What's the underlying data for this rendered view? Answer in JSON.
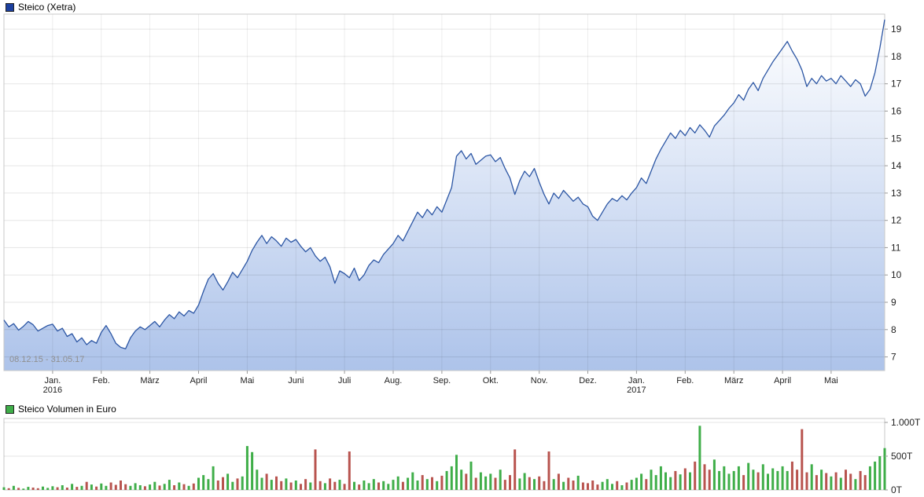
{
  "chart_data": [
    {
      "type": "area",
      "title": "Steico (Xetra)",
      "range_label": "08.12.15 - 31.05.17",
      "ylim": [
        6.5,
        19.55
      ],
      "yticks": [
        7,
        8,
        9,
        10,
        11,
        12,
        13,
        14,
        15,
        16,
        17,
        18,
        19
      ],
      "x_ticks": [
        {
          "label": "Jan.",
          "sub": "2016",
          "i": 10
        },
        {
          "label": "Feb.",
          "i": 20
        },
        {
          "label": "März",
          "i": 30
        },
        {
          "label": "April",
          "i": 40
        },
        {
          "label": "Mai",
          "i": 50
        },
        {
          "label": "Juni",
          "i": 60
        },
        {
          "label": "Juli",
          "i": 70
        },
        {
          "label": "Aug.",
          "i": 80
        },
        {
          "label": "Sep.",
          "i": 90
        },
        {
          "label": "Okt.",
          "i": 100
        },
        {
          "label": "Nov.",
          "i": 110
        },
        {
          "label": "Dez.",
          "i": 120
        },
        {
          "label": "Jan.",
          "sub": "2017",
          "i": 130
        },
        {
          "label": "Feb.",
          "i": 140
        },
        {
          "label": "März",
          "i": 150
        },
        {
          "label": "April",
          "i": 160
        },
        {
          "label": "Mai",
          "i": 170
        }
      ],
      "values": [
        8.35,
        8.1,
        8.22,
        7.98,
        8.12,
        8.3,
        8.18,
        7.95,
        8.05,
        8.15,
        8.2,
        7.95,
        8.05,
        7.75,
        7.85,
        7.55,
        7.7,
        7.45,
        7.6,
        7.5,
        7.9,
        8.15,
        7.85,
        7.5,
        7.35,
        7.3,
        7.7,
        7.95,
        8.1,
        8.0,
        8.15,
        8.3,
        8.1,
        8.35,
        8.55,
        8.4,
        8.65,
        8.5,
        8.7,
        8.6,
        8.9,
        9.4,
        9.85,
        10.05,
        9.7,
        9.45,
        9.75,
        10.1,
        9.9,
        10.2,
        10.5,
        10.9,
        11.2,
        11.45,
        11.15,
        11.4,
        11.25,
        11.05,
        11.35,
        11.2,
        11.3,
        11.05,
        10.85,
        11.0,
        10.7,
        10.5,
        10.65,
        10.3,
        9.7,
        10.15,
        10.05,
        9.9,
        10.25,
        9.8,
        10.0,
        10.35,
        10.55,
        10.45,
        10.75,
        10.95,
        11.15,
        11.45,
        11.25,
        11.6,
        11.95,
        12.3,
        12.1,
        12.4,
        12.2,
        12.5,
        12.3,
        12.75,
        13.2,
        14.35,
        14.55,
        14.25,
        14.45,
        14.05,
        14.2,
        14.35,
        14.4,
        14.15,
        14.3,
        13.9,
        13.55,
        12.95,
        13.45,
        13.8,
        13.6,
        13.9,
        13.4,
        12.95,
        12.6,
        13.0,
        12.8,
        13.1,
        12.9,
        12.7,
        12.85,
        12.6,
        12.5,
        12.15,
        12.0,
        12.3,
        12.6,
        12.8,
        12.7,
        12.9,
        12.75,
        13.0,
        13.2,
        13.55,
        13.35,
        13.8,
        14.25,
        14.6,
        14.9,
        15.2,
        15.0,
        15.3,
        15.1,
        15.4,
        15.2,
        15.5,
        15.3,
        15.05,
        15.45,
        15.65,
        15.85,
        16.1,
        16.3,
        16.6,
        16.4,
        16.8,
        17.05,
        16.75,
        17.2,
        17.5,
        17.8,
        18.05,
        18.3,
        18.55,
        18.2,
        17.9,
        17.5,
        16.9,
        17.2,
        17.0,
        17.3,
        17.1,
        17.2,
        17.0,
        17.3,
        17.1,
        16.9,
        17.15,
        17.0,
        16.55,
        16.8,
        17.4,
        18.3,
        19.35
      ],
      "line_color": "#2c56a4",
      "fill_top": "#ffffff",
      "fill_bottom": "#adc3ea",
      "legend_color": "#1b3f9e"
    },
    {
      "type": "bar",
      "title": "Steico Volumen in Euro",
      "unit": "T",
      "ylim": [
        0,
        1058
      ],
      "yticks": [
        {
          "v": 1000,
          "label": "1.000T"
        },
        {
          "v": 500,
          "label": "500T"
        },
        {
          "v": 0,
          "label": "0T"
        }
      ],
      "values": [
        40,
        25,
        60,
        30,
        20,
        45,
        35,
        25,
        50,
        30,
        55,
        40,
        70,
        35,
        90,
        45,
        60,
        120,
        80,
        50,
        95,
        60,
        110,
        75,
        140,
        85,
        60,
        100,
        70,
        55,
        80,
        120,
        65,
        90,
        150,
        70,
        110,
        85,
        60,
        95,
        180,
        220,
        160,
        350,
        140,
        190,
        240,
        120,
        170,
        200,
        650,
        560,
        300,
        180,
        240,
        150,
        200,
        130,
        170,
        110,
        140,
        90,
        160,
        110,
        600,
        130,
        100,
        170,
        120,
        150,
        90,
        570,
        120,
        80,
        140,
        100,
        160,
        110,
        130,
        90,
        150,
        200,
        120,
        180,
        260,
        140,
        220,
        160,
        190,
        130,
        210,
        280,
        350,
        520,
        300,
        240,
        420,
        180,
        260,
        200,
        240,
        180,
        300,
        150,
        220,
        600,
        170,
        250,
        190,
        160,
        200,
        130,
        570,
        160,
        240,
        120,
        180,
        140,
        210,
        110,
        100,
        140,
        80,
        120,
        160,
        90,
        130,
        70,
        110,
        150,
        180,
        240,
        160,
        300,
        220,
        350,
        260,
        190,
        280,
        230,
        320,
        260,
        420,
        950,
        380,
        300,
        450,
        280,
        350,
        240,
        280,
        350,
        220,
        400,
        300,
        260,
        380,
        240,
        320,
        280,
        350,
        280,
        420,
        300,
        900,
        260,
        380,
        220,
        300,
        250,
        200,
        260,
        180,
        300,
        240,
        160,
        280,
        220,
        350,
        420,
        500,
        620
      ],
      "up_color": "#3fae49",
      "down_color": "#b8544f",
      "legend_color": "#3fae49"
    }
  ]
}
